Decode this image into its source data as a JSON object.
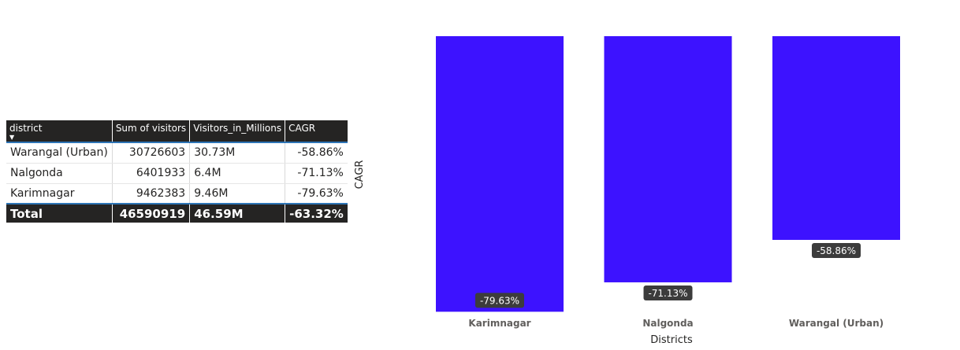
{
  "table": {
    "columns": [
      "district",
      "Sum of visitors",
      "Visitors_in_Millions",
      "CAGR"
    ],
    "rows": [
      [
        "Warangal (Urban)",
        "30726603",
        "30.73M",
        "-58.86%"
      ],
      [
        "Nalgonda",
        "6401933",
        "6.4M",
        "-71.13%"
      ],
      [
        "Karimnagar",
        "9462383",
        "9.46M",
        "-79.63%"
      ]
    ],
    "total": [
      "Total",
      "46590919",
      "46.59M",
      "-63.32%"
    ]
  },
  "chart_data": {
    "type": "bar",
    "categories": [
      "Karimnagar",
      "Nalgonda",
      "Warangal (Urban)"
    ],
    "values": [
      -79.63,
      -71.13,
      -58.86
    ],
    "data_labels": [
      "-79.63%",
      "-71.13%",
      "-58.86%"
    ],
    "xlabel": "Districts",
    "ylabel": "CAGR",
    "bar_color": "#3d12ff",
    "grid": false,
    "legend": "none"
  }
}
